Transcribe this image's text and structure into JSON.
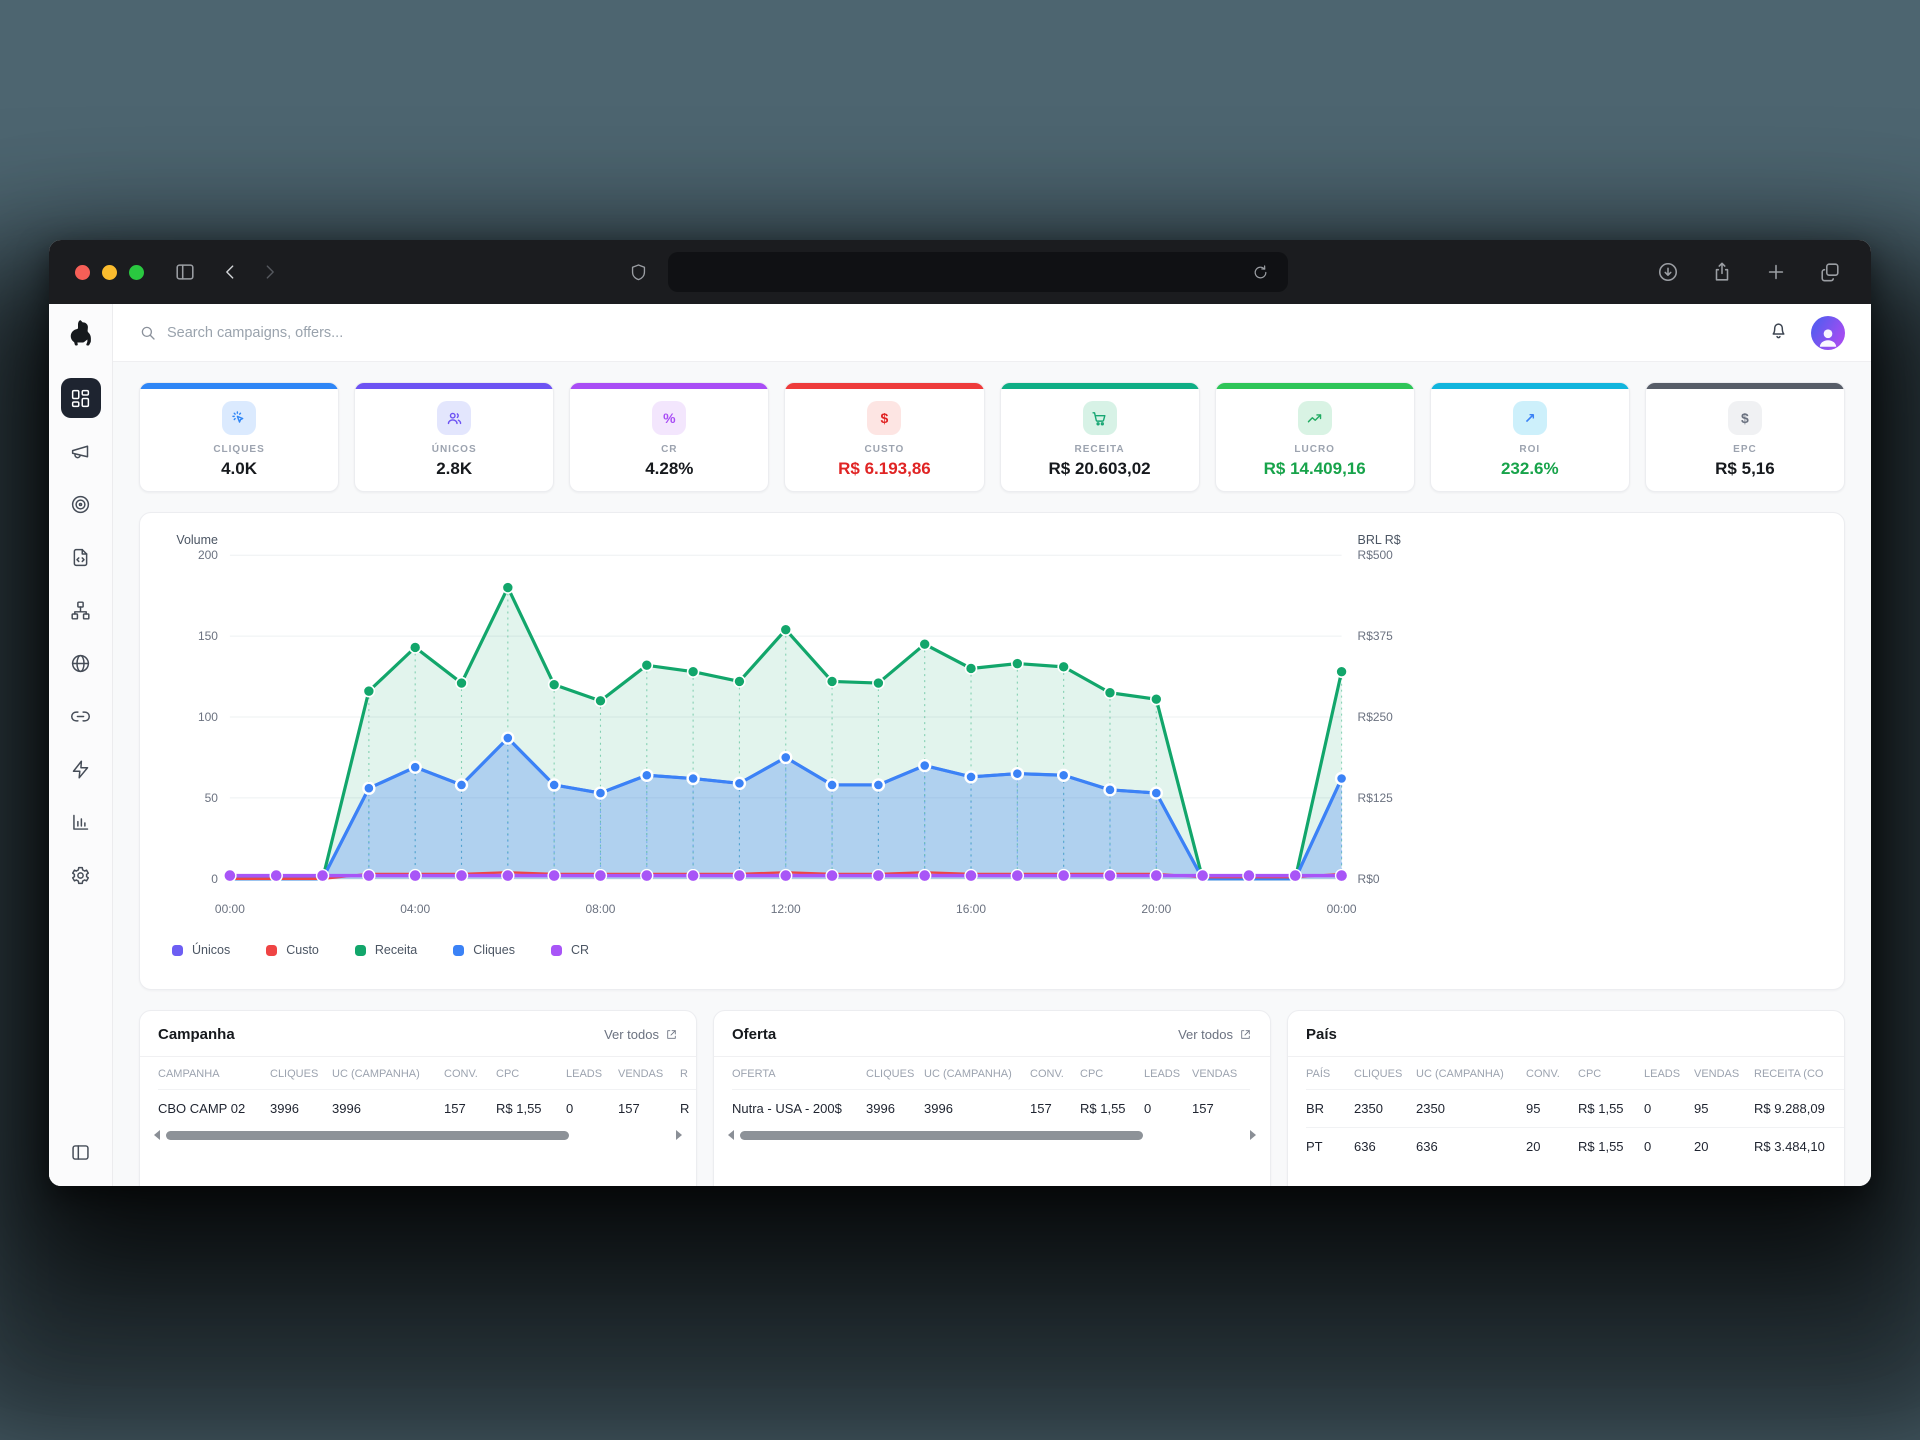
{
  "header": {
    "search_placeholder": "Search campaigns, offers..."
  },
  "kpis": [
    {
      "label": "CLIQUES",
      "value": "4.0K",
      "accent": "#2f86f6",
      "icon": "click-icon",
      "icon_bg": "#dbeafe",
      "icon_color": "#2f86f6",
      "value_color": "#16191d"
    },
    {
      "label": "ÚNICOS",
      "value": "2.8K",
      "accent": "#6d53f3",
      "icon": "users-icon",
      "icon_bg": "#e3e6fd",
      "icon_color": "#6d53f3",
      "value_color": "#16191d"
    },
    {
      "label": "CR",
      "value": "4.28%",
      "accent": "#a94df5",
      "icon": "percent-icon",
      "icon_glyph": "%",
      "icon_bg": "#f3e6fd",
      "icon_color": "#a94df5",
      "value_color": "#16191d"
    },
    {
      "label": "CUSTO",
      "value": "R$ 6.193,86",
      "accent": "#ee3b3b",
      "icon": "dollar-icon",
      "icon_glyph": "$",
      "icon_bg": "#fde5e3",
      "icon_color": "#e02424",
      "value_color": "#e02424"
    },
    {
      "label": "RECEITA",
      "value": "R$ 20.603,02",
      "accent": "#0fae85",
      "icon": "cart-icon",
      "icon_bg": "#d7f2e6",
      "icon_color": "#17a673",
      "value_color": "#16191d"
    },
    {
      "label": "LUCRO",
      "value": "R$ 14.409,16",
      "accent": "#2ec558",
      "icon": "trend-up-icon",
      "icon_bg": "#d9f3e4",
      "icon_color": "#21ab62",
      "value_color": "#17a34a"
    },
    {
      "label": "ROI",
      "value": "232.6%",
      "accent": "#12b5dd",
      "icon": "arrow-up-right-icon",
      "icon_glyph": "↗",
      "icon_bg": "#cdf0fb",
      "icon_color": "#3b82f6",
      "value_color": "#17a34a"
    },
    {
      "label": "EPC",
      "value": "R$ 5,16",
      "accent": "#575d68",
      "icon": "dollar-icon",
      "icon_glyph": "$",
      "icon_bg": "#f0f1f3",
      "icon_color": "#6b7280",
      "value_color": "#16191d"
    }
  ],
  "chart_data": {
    "type": "area",
    "x_points": [
      "00:00",
      "01:00",
      "02:00",
      "03:00",
      "04:00",
      "05:00",
      "06:00",
      "07:00",
      "08:00",
      "09:00",
      "10:00",
      "11:00",
      "12:00",
      "13:00",
      "14:00",
      "15:00",
      "16:00",
      "17:00",
      "18:00",
      "19:00",
      "20:00",
      "21:00",
      "22:00",
      "23:00",
      "00:00"
    ],
    "x_tick_indices": [
      0,
      4,
      8,
      12,
      16,
      20,
      24
    ],
    "x_tick_labels": [
      "00:00",
      "04:00",
      "08:00",
      "12:00",
      "16:00",
      "20:00",
      "00:00"
    ],
    "left_axis": {
      "title": "Volume",
      "ticks": [
        0,
        50,
        100,
        150,
        200
      ],
      "tick_labels": [
        "0",
        "50",
        "100",
        "150",
        "200"
      ]
    },
    "right_axis": {
      "title": "BRL R$",
      "tick_labels": [
        "R$0",
        "R$125",
        "R$250",
        "R$375",
        "R$500"
      ]
    },
    "grid": true,
    "legend_position": "bottom-left",
    "series": [
      {
        "name": "Únicos",
        "color": "#6d5ef3",
        "note": "overlaps Cliques line",
        "values": [
          0,
          0,
          0,
          56,
          69,
          58,
          87,
          58,
          53,
          64,
          62,
          59,
          75,
          58,
          58,
          70,
          63,
          65,
          64,
          55,
          53,
          0,
          0,
          0,
          62
        ]
      },
      {
        "name": "Custo",
        "color": "#ef4444",
        "values": [
          0,
          0,
          0,
          3,
          3,
          3,
          4,
          3,
          3,
          3,
          3,
          3,
          4,
          3,
          3,
          4,
          3,
          3,
          3,
          3,
          3,
          1,
          1,
          1,
          3
        ]
      },
      {
        "name": "Receita",
        "color": "#12a66b",
        "values": [
          0,
          0,
          0,
          116,
          143,
          121,
          180,
          120,
          110,
          132,
          128,
          122,
          154,
          122,
          121,
          145,
          130,
          133,
          131,
          115,
          111,
          0,
          0,
          0,
          128
        ]
      },
      {
        "name": "Cliques",
        "color": "#3b82f6",
        "values": [
          0,
          0,
          0,
          56,
          69,
          58,
          87,
          58,
          53,
          64,
          62,
          59,
          75,
          58,
          58,
          70,
          63,
          65,
          64,
          55,
          53,
          0,
          0,
          0,
          62
        ]
      },
      {
        "name": "CR",
        "color": "#a855f7",
        "values": [
          2,
          2,
          2,
          2,
          2,
          2,
          2,
          2,
          2,
          2,
          2,
          2,
          2,
          2,
          2,
          2,
          2,
          2,
          2,
          2,
          2,
          2,
          2,
          2,
          2
        ]
      }
    ]
  },
  "legend": [
    {
      "label": "Únicos",
      "color": "#6d5ef3"
    },
    {
      "label": "Custo",
      "color": "#ef4444"
    },
    {
      "label": "Receita",
      "color": "#12a66b"
    },
    {
      "label": "Cliques",
      "color": "#3b82f6"
    },
    {
      "label": "CR",
      "color": "#a855f7"
    }
  ],
  "tables": {
    "campanha": {
      "title": "Campanha",
      "link_label": "Ver todos",
      "columns": [
        "CAMPANHA",
        "CLIQUES",
        "UC (CAMPANHA)",
        "CONV.",
        "CPC",
        "LEADS",
        "VENDAS",
        "R"
      ],
      "rows": [
        [
          "CBO CAMP 02",
          "3996",
          "3996",
          "157",
          "R$ 1,55",
          "0",
          "157",
          "R"
        ]
      ]
    },
    "oferta": {
      "title": "Oferta",
      "link_label": "Ver todos",
      "columns": [
        "OFERTA",
        "CLIQUES",
        "UC (CAMPANHA)",
        "CONV.",
        "CPC",
        "LEADS",
        "VENDAS"
      ],
      "rows": [
        [
          "Nutra - USA - 200$",
          "3996",
          "3996",
          "157",
          "R$ 1,55",
          "0",
          "157"
        ]
      ]
    },
    "pais": {
      "title": "País",
      "link_label": "",
      "columns": [
        "PAÍS",
        "CLIQUES",
        "UC (CAMPANHA)",
        "CONV.",
        "CPC",
        "LEADS",
        "VENDAS",
        "RECEITA (CO"
      ],
      "rows": [
        [
          "BR",
          "2350",
          "2350",
          "95",
          "R$ 1,55",
          "0",
          "95",
          "R$ 9.288,09"
        ],
        [
          "PT",
          "636",
          "636",
          "20",
          "R$ 1,55",
          "0",
          "20",
          "R$ 3.484,10"
        ]
      ]
    }
  }
}
